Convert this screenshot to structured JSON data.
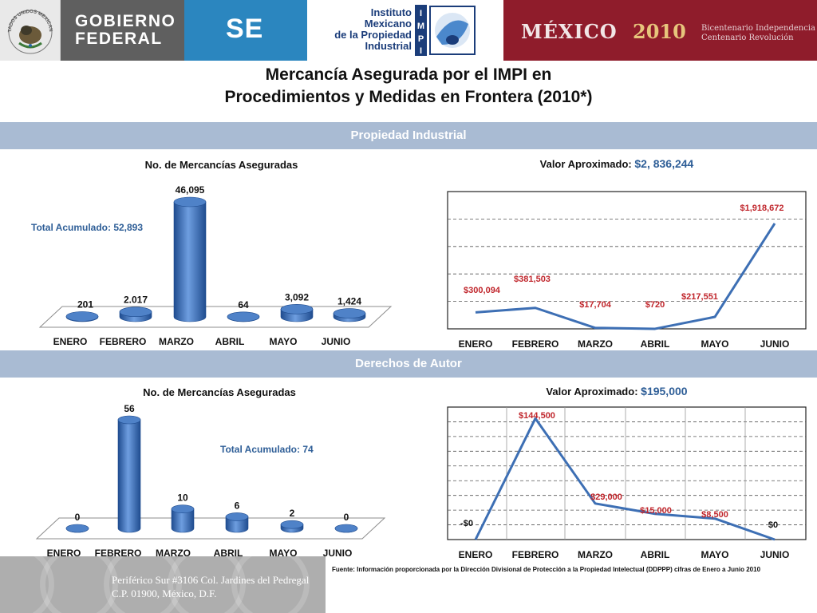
{
  "header": {
    "gobierno": [
      "GOBIERNO",
      "FEDERAL"
    ],
    "se": "SE",
    "impi_name": [
      "Instituto",
      "Mexicano",
      "de la Propiedad",
      "Industrial"
    ],
    "impi_letters": [
      "I",
      "M",
      "P",
      "I"
    ],
    "mexico": "MÉXICO",
    "year": "2010",
    "bicentenario": "Bicentenario Independencia",
    "centenario": "Centenario Revolución",
    "seal_text": "ESTADOS UNIDOS MEXICANOS"
  },
  "title": [
    "Mercancía Asegurada por el IMPI en",
    "Procedimientos y Medidas en Frontera (2010*)"
  ],
  "sections": {
    "industrial": "Propiedad Industrial",
    "autor": "Derechos de Autor"
  },
  "industrial": {
    "count_title": "No. de Mercancías Aseguradas",
    "count_total": "Total Acumulado: 52,893",
    "value_title_label": "Valor Aproximado:",
    "value_title_amount": "$2, 836,244"
  },
  "autor": {
    "count_title": "No. de Mercancías Aseguradas",
    "count_total": "Total Acumulado: 74",
    "value_title_label": "Valor Aproximado:",
    "value_title_amount": "$195,000"
  },
  "chart_data": [
    {
      "type": "bar",
      "title": "No. de Mercancías Aseguradas",
      "categories": [
        "ENERO",
        "FEBRERO",
        "MARZO",
        "ABRIL",
        "MAYO",
        "JUNIO"
      ],
      "values": [
        201,
        2017,
        46095,
        64,
        3092,
        1424
      ],
      "labels": [
        "201",
        "2.017",
        "46,095",
        "64",
        "3,092",
        "1,424"
      ],
      "annotation": "Total Acumulado: 52,893",
      "ylim": [
        0,
        46095
      ],
      "color": "#3d6fb4"
    },
    {
      "type": "line",
      "title": "Valor Aproximado: $2, 836,244",
      "categories": [
        "ENERO",
        "FEBRERO",
        "MARZO",
        "ABRIL",
        "MAYO",
        "JUNIO"
      ],
      "values": [
        300094,
        381503,
        17704,
        720,
        217551,
        1918672
      ],
      "labels": [
        "$300,094",
        "$381,503",
        "$17,704",
        "$720",
        "$217,551",
        "$1,918,672"
      ],
      "ylim": [
        0,
        2500000
      ],
      "grid": true,
      "color": "#3d6fb4",
      "label_color": "#c0262c"
    },
    {
      "type": "bar",
      "title": "No. de Mercancías Aseguradas",
      "categories": [
        "ENERO",
        "FEBRERO",
        "MARZO",
        "ABRIL",
        "MAYO",
        "JUNIO"
      ],
      "values": [
        0,
        56,
        10,
        6,
        2,
        0
      ],
      "labels": [
        "0",
        "56",
        "10",
        "6",
        "2",
        "0"
      ],
      "annotation": "Total Acumulado: 74",
      "ylim": [
        0,
        56
      ],
      "color": "#3d6fb4"
    },
    {
      "type": "line",
      "title": "Valor Aproximado: $195,000",
      "categories": [
        "ENERO",
        "FEBRERO",
        "MARZO",
        "ABRIL",
        "MAYO",
        "JUNIO"
      ],
      "values": [
        0,
        144500,
        29000,
        15000,
        8500,
        0
      ],
      "labels": [
        "-$0",
        "$144,500",
        "$29,000",
        "$15,000",
        "$8,500",
        "$0"
      ],
      "ylim": [
        -20000,
        160000
      ],
      "grid": true,
      "color": "#3d6fb4",
      "label_color": "#c0262c"
    }
  ],
  "footer": {
    "address_1": "Periférico Sur #3106 Col. Jardines del Pedregal",
    "address_2": "C.P. 01900, México, D.F.",
    "source": "Fuente: Información proporcionada por la Dirección Divisional de Protección a la Propiedad Intelectual (DDPPP) cifras de Enero a Junio 2010"
  }
}
